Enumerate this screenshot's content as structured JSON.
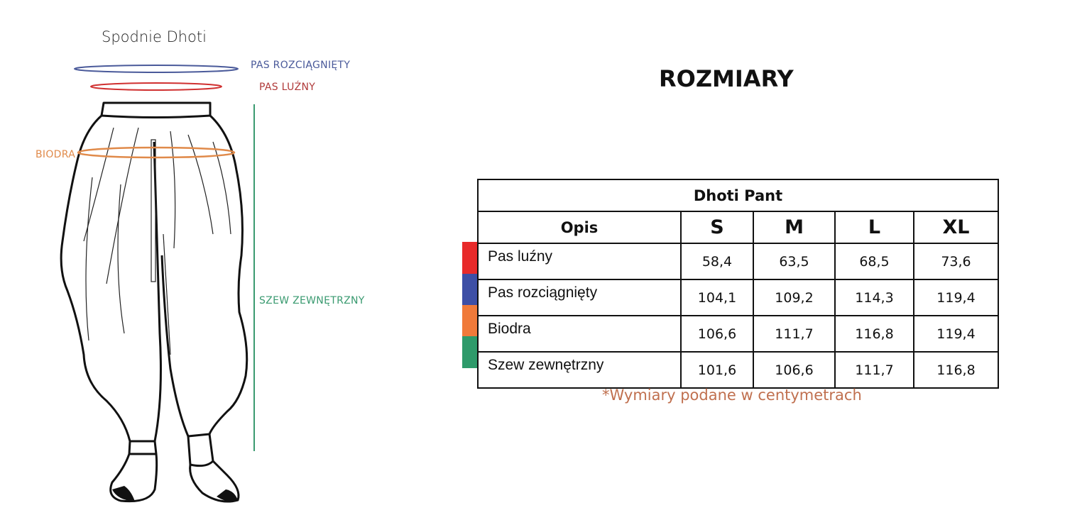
{
  "diagram": {
    "title": "Spodnie Dhoti",
    "labels": {
      "pas_rozciagniety": "PAS ROZCIĄGNIĘTY",
      "pas_luzny": "PAS LUŹNY",
      "biodra": "BIODRA",
      "szew": "SZEW ZEWNĘTRZNY"
    },
    "colors": {
      "pas_rozciagniety": "#4a5a9a",
      "pas_luzny": "#d03030",
      "biodra": "#e08a4a",
      "szew": "#3a9a70"
    }
  },
  "heading": "ROZMIARY",
  "table": {
    "title": "Dhoti Pant",
    "headers": [
      "Opis",
      "S",
      "M",
      "L",
      "XL"
    ],
    "rows": [
      {
        "label": "Pas luźny",
        "color": "#e82a2a",
        "values": [
          "58,4",
          "63,5",
          "68,5",
          "73,6"
        ]
      },
      {
        "label": "Pas rozciągnięty",
        "color": "#3d4fa6",
        "values": [
          "104,1",
          "109,2",
          "114,3",
          "119,4"
        ]
      },
      {
        "label": "Biodra",
        "color": "#f07a3a",
        "values": [
          "106,6",
          "111,7",
          "116,8",
          "119,4"
        ]
      },
      {
        "label": "Szew zewnętrzny",
        "color": "#2e9a6a",
        "values": [
          "101,6",
          "106,6",
          "111,7",
          "116,8"
        ]
      }
    ]
  },
  "note": "*Wymiary podane w centymetrach"
}
